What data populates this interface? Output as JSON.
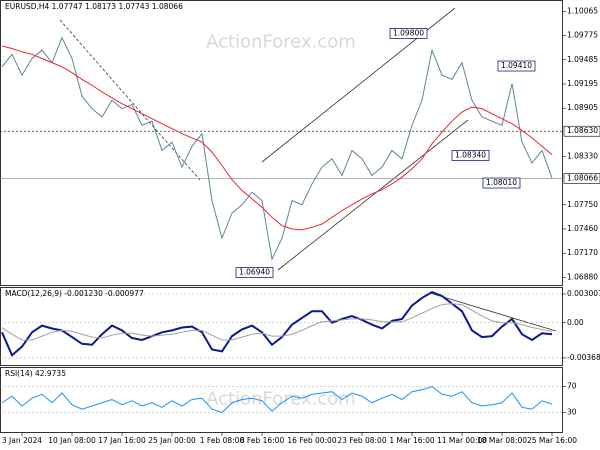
{
  "chart_data": [
    {
      "type": "line",
      "title": "EURUSD,H4 1.07747 1.08173 1.07743 1.08066",
      "watermark": "ActionForex.com",
      "categories": [
        null,
        null,
        "3 Jan 2024",
        null,
        null,
        null,
        null,
        "10 Jan 08:00",
        null,
        null,
        null,
        null,
        "17 Jan 16:00",
        null,
        null,
        null,
        null,
        "25 Jan 00:00",
        null,
        null,
        null,
        null,
        "1 Feb 08:00",
        null,
        null,
        null,
        "8 Feb 16:00",
        null,
        null,
        null,
        null,
        "16 Feb 00:00",
        null,
        null,
        null,
        null,
        "23 Feb 08:00",
        null,
        null,
        null,
        null,
        "1 Mar 16:00",
        null,
        null,
        null,
        null,
        "11 Mar 00:00",
        null,
        null,
        null,
        "18 Mar 08:00",
        null,
        null,
        null,
        null,
        "25 Mar 16:00"
      ],
      "series": [
        {
          "color": "#5b8697",
          "values": [
            1.094,
            1.0955,
            1.093,
            1.095,
            1.096,
            1.0945,
            1.0975,
            1.095,
            1.0905,
            1.089,
            1.088,
            1.09,
            1.089,
            1.0895,
            1.087,
            1.0875,
            1.084,
            1.085,
            1.082,
            1.0845,
            1.086,
            1.078,
            1.0735,
            1.0765,
            1.0775,
            1.079,
            1.078,
            1.071,
            1.0735,
            1.078,
            1.0775,
            1.08,
            1.082,
            1.083,
            1.081,
            1.084,
            1.083,
            1.081,
            1.082,
            1.084,
            1.083,
            1.087,
            1.09,
            1.096,
            1.093,
            1.0925,
            1.0945,
            1.09,
            1.088,
            1.0875,
            1.087,
            1.092,
            1.085,
            1.0825,
            1.084,
            1.0807
          ]
        },
        {
          "color": "#e8262a",
          "values": [
            1.0965,
            1.0962,
            1.0958,
            1.0955,
            1.095,
            1.0945,
            1.094,
            1.0933,
            1.0925,
            1.0918,
            1.091,
            1.0903,
            1.0896,
            1.089,
            1.0884,
            1.0878,
            1.0872,
            1.0866,
            1.086,
            1.0855,
            1.085,
            1.0838,
            1.0822,
            1.0805,
            1.0792,
            1.0782,
            1.0772,
            1.076,
            1.075,
            1.0746,
            1.0745,
            1.0748,
            1.0752,
            1.076,
            1.0768,
            1.0775,
            1.0782,
            1.0788,
            1.0793,
            1.08,
            1.0808,
            1.0818,
            1.083,
            1.0848,
            1.0862,
            1.0875,
            1.0886,
            1.0892,
            1.089,
            1.0884,
            1.0878,
            1.0872,
            1.0864,
            1.0855,
            1.0845,
            1.0835
          ]
        }
      ],
      "ylim": [
        1.0679,
        1.102
      ],
      "yticks": [
        1.10065,
        1.09775,
        1.09485,
        1.09195,
        1.08905,
        {
          "value": 1.0833,
          "label": "1.08330"
        },
        {
          "value": 1.0775,
          "label": "1.07750"
        },
        {
          "value": 1.0746,
          "label": "1.07460"
        },
        {
          "value": 1.0717,
          "label": "1.07170"
        },
        {
          "value": 1.0688,
          "label": "1.06880"
        }
      ],
      "hline": {
        "value": 1.0863,
        "label": "1.08630"
      },
      "current": {
        "value": 1.08066,
        "label": "1.08066"
      },
      "annotations": [
        {
          "value": 1.098,
          "label": "1.09800"
        },
        {
          "value": 1.0941,
          "label": "1.09410"
        },
        {
          "value": 1.0834,
          "label": "1.08340"
        },
        {
          "value": 1.0801,
          "label": "1.08010"
        },
        {
          "value": 1.0694,
          "label": "1.06940"
        }
      ]
    },
    {
      "type": "line",
      "title": "MACD(12,26,9) -0.001230 -0.000977",
      "series": [
        {
          "color": "#0a1a8c",
          "values": [
            -0.001,
            -0.0034,
            -0.0025,
            -0.001,
            -0.0003,
            -0.0006,
            -0.0008,
            -0.0015,
            -0.0022,
            -0.0023,
            -0.0012,
            -0.0003,
            -0.0008,
            -0.0016,
            -0.0018,
            -0.0014,
            -0.001,
            -0.0008,
            -0.0005,
            -0.0004,
            -0.001,
            -0.0028,
            -0.003,
            -0.0014,
            -0.0007,
            -0.0003,
            -0.001,
            -0.0023,
            -0.0015,
            -0.0002,
            0.0005,
            0.0012,
            0.0012,
            0.0,
            0.0004,
            0.0007,
            0.0003,
            -0.0002,
            -0.0006,
            0.0002,
            0.0004,
            0.0018,
            0.0026,
            0.0032,
            0.0028,
            0.002,
            0.0012,
            -0.0008,
            -0.0015,
            -0.0014,
            -0.0004,
            0.0004,
            -0.0012,
            -0.0018,
            -0.0011,
            -0.0012
          ]
        },
        {
          "color": "#a0a0a0",
          "values": [
            -0.0005,
            -0.0012,
            -0.0018,
            -0.0018,
            -0.0014,
            -0.001,
            -0.0008,
            -0.0009,
            -0.0012,
            -0.0015,
            -0.0016,
            -0.0013,
            -0.0011,
            -0.0011,
            -0.0013,
            -0.0014,
            -0.0013,
            -0.0012,
            -0.001,
            -0.0008,
            -0.0008,
            -0.0013,
            -0.0018,
            -0.0018,
            -0.0015,
            -0.0012,
            -0.0011,
            -0.0014,
            -0.0014,
            -0.0012,
            -0.0008,
            -0.0003,
            0.0001,
            0.0002,
            0.0003,
            0.0004,
            0.0004,
            0.0003,
            0.0001,
            0.0001,
            0.0001,
            0.0005,
            0.001,
            0.0015,
            0.0019,
            0.002,
            0.0019,
            0.0013,
            0.0007,
            0.0002,
            0.0,
            0.0,
            -0.0002,
            -0.0005,
            -0.0007,
            -0.0009
          ]
        }
      ],
      "ylim": [
        -0.00442,
        0.00374
      ],
      "yticks": [
        0.003007,
        {
          "value": 0,
          "label": "0.00"
        },
        -0.003684
      ]
    },
    {
      "type": "line",
      "title": "RSI(14) 42.9735",
      "watermark": "ActionForex.com",
      "series": [
        {
          "color": "#1e90ff",
          "values": [
            45,
            55,
            40,
            52,
            58,
            45,
            60,
            42,
            35,
            40,
            45,
            50,
            42,
            48,
            40,
            45,
            38,
            48,
            40,
            50,
            52,
            35,
            30,
            45,
            50,
            52,
            48,
            32,
            45,
            55,
            52,
            58,
            60,
            62,
            50,
            60,
            55,
            45,
            52,
            58,
            50,
            62,
            65,
            70,
            58,
            55,
            62,
            45,
            40,
            42,
            45,
            60,
            38,
            35,
            48,
            43
          ]
        }
      ],
      "ylim": [
        0,
        100
      ],
      "yticks": [
        70,
        30
      ]
    }
  ]
}
